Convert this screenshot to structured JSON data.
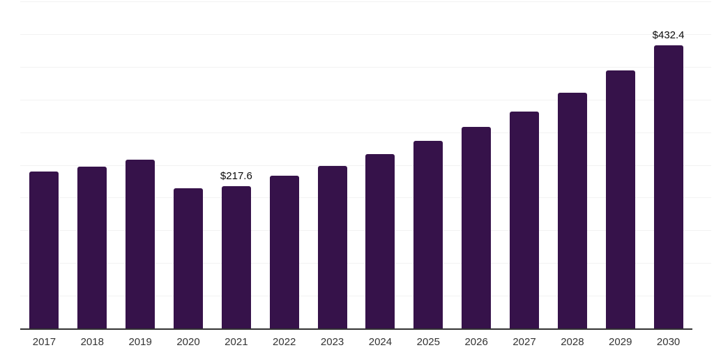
{
  "chart_data": {
    "type": "bar",
    "title": "",
    "xlabel": "",
    "ylabel": "",
    "categories": [
      "2017",
      "2018",
      "2019",
      "2020",
      "2021",
      "2022",
      "2023",
      "2024",
      "2025",
      "2026",
      "2027",
      "2028",
      "2029",
      "2030"
    ],
    "values": [
      240,
      247,
      257.5,
      214,
      217.6,
      233.5,
      248.5,
      267,
      287,
      308.5,
      331.5,
      360,
      394,
      432.4
    ],
    "data_labels": [
      {
        "index": 4,
        "text": "$217.6"
      },
      {
        "index": 13,
        "text": "$432.4"
      }
    ],
    "ylim": [
      0,
      500
    ],
    "gridline_count": 10,
    "grid_on": true,
    "y_axis_labels_visible": false,
    "legend": "none",
    "colors": {
      "bar": "#36124A",
      "gridline": "#f2f2f2",
      "axis_line": "#333333",
      "x_tick_label": "#333333",
      "data_label": "#0a0a0a",
      "background": "#ffffff"
    }
  }
}
